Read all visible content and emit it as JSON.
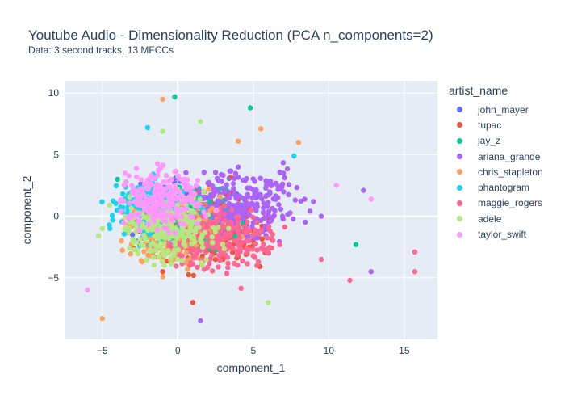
{
  "chart_data": {
    "type": "scatter",
    "title": "Youtube Audio - Dimensionality Reduction (PCA n_components=2)",
    "subtitle": "Data: 3 second tracks, 13 MFCCs",
    "xlabel": "component_1",
    "ylabel": "component_2",
    "xlim": [
      -7.5,
      17.2
    ],
    "ylim": [
      -10.0,
      11.0
    ],
    "xticks": [
      -5,
      0,
      5,
      10,
      15
    ],
    "yticks": [
      -5,
      0,
      5,
      10
    ],
    "grid": true,
    "legend_title": "artist_name",
    "legend_position": "right",
    "series": [
      {
        "name": "john_mayer",
        "color": "#636efa",
        "center": [
          0.5,
          0.0
        ],
        "spread": [
          2.8,
          2.2
        ],
        "points": [
          [
            -1.5,
            1.0
          ],
          [
            2.0,
            -1.0
          ],
          [
            3.5,
            0.5
          ],
          [
            -3.0,
            -1.5
          ],
          [
            0.5,
            2.5
          ]
        ]
      },
      {
        "name": "tupac",
        "color": "#EF553B",
        "center": [
          2.0,
          -1.0
        ],
        "spread": [
          2.8,
          2.2
        ],
        "points": [
          [
            1.0,
            -7.0
          ],
          [
            3.0,
            -3.5
          ],
          [
            5.0,
            -2.0
          ],
          [
            -1.0,
            -4.5
          ],
          [
            6.0,
            -3.0
          ]
        ]
      },
      {
        "name": "jay_z",
        "color": "#00cc96",
        "center": [
          1.0,
          -0.5
        ],
        "spread": [
          2.5,
          2.0
        ],
        "points": [
          [
            -0.2,
            9.7
          ],
          [
            4.8,
            8.8
          ],
          [
            11.8,
            -2.3
          ],
          [
            -4.0,
            3.0
          ],
          [
            2.0,
            -2.0
          ]
        ]
      },
      {
        "name": "ariana_grande",
        "color": "#ab63fa",
        "center": [
          4.0,
          1.0
        ],
        "spread": [
          3.3,
          2.3
        ],
        "points": [
          [
            12.8,
            -4.5
          ],
          [
            12.3,
            2.1
          ],
          [
            9.5,
            0.0
          ],
          [
            1.5,
            -8.5
          ],
          [
            7.0,
            3.5
          ],
          [
            4.0,
            4.0
          ]
        ]
      },
      {
        "name": "chris_stapleton",
        "color": "#FFA15A",
        "center": [
          0.0,
          -1.0
        ],
        "spread": [
          2.5,
          2.3
        ],
        "points": [
          [
            -1.0,
            9.5
          ],
          [
            5.5,
            7.1
          ],
          [
            8.0,
            6.0
          ],
          [
            -5.0,
            -8.3
          ],
          [
            4.0,
            6.1
          ]
        ]
      },
      {
        "name": "phantogram",
        "color": "#19d3f3",
        "center": [
          -1.5,
          0.5
        ],
        "spread": [
          2.2,
          2.0
        ],
        "points": [
          [
            -2.0,
            7.2
          ],
          [
            7.7,
            4.9
          ],
          [
            -4.5,
            -1.0
          ],
          [
            1.0,
            2.0
          ]
        ]
      },
      {
        "name": "maggie_rogers",
        "color": "#FF6692",
        "center": [
          2.5,
          -2.0
        ],
        "spread": [
          3.0,
          2.0
        ],
        "points": [
          [
            15.7,
            -2.9
          ],
          [
            15.7,
            -4.5
          ],
          [
            11.4,
            -5.2
          ],
          [
            9.5,
            -3.5
          ],
          [
            6.0,
            -3.0
          ]
        ]
      },
      {
        "name": "adele",
        "color": "#B6E880",
        "center": [
          -0.5,
          -1.0
        ],
        "spread": [
          2.5,
          2.2
        ],
        "points": [
          [
            1.5,
            7.7
          ],
          [
            -1.0,
            6.9
          ],
          [
            6.0,
            -7.0
          ],
          [
            -5.0,
            -1.0
          ],
          [
            0.0,
            -3.5
          ]
        ]
      },
      {
        "name": "taylor_swift",
        "color": "#FF97FF",
        "center": [
          -1.0,
          1.5
        ],
        "spread": [
          2.0,
          1.8
        ],
        "points": [
          [
            -6.0,
            -6.0
          ],
          [
            12.8,
            1.4
          ],
          [
            10.5,
            2.5
          ],
          [
            -3.5,
            3.5
          ],
          [
            0.0,
            2.0
          ]
        ]
      }
    ]
  }
}
